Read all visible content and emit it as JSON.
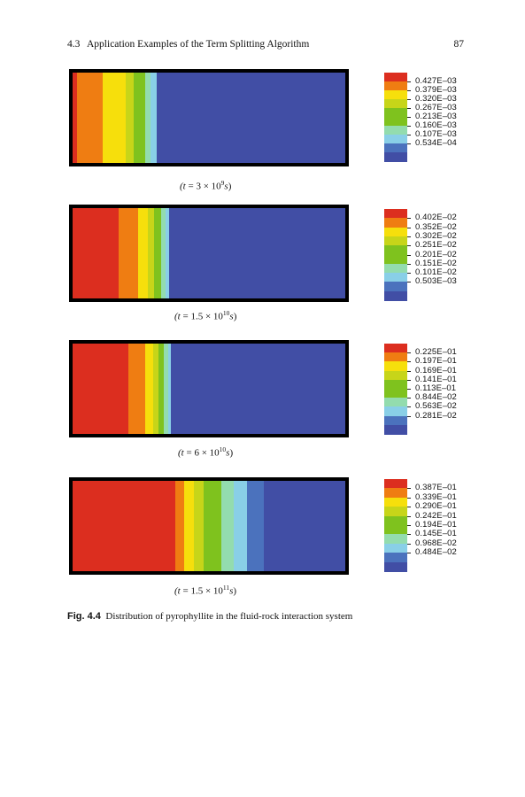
{
  "header": {
    "section_number": "4.3",
    "section_title": "Application Examples of the Term Splitting Algorithm",
    "page_number": "87"
  },
  "colors": {
    "red": "#dc2e1f",
    "orange": "#ef7d12",
    "yellow": "#f6df0c",
    "yellow_green": "#c7d519",
    "green": "#7fc21e",
    "mint": "#93dcae",
    "light_blue": "#89cfe7",
    "steel_blue": "#4b72bd",
    "blue": "#414ea5"
  },
  "legend_colors": [
    "#dc2e1f",
    "#ef7d12",
    "#f6df0c",
    "#c7d519",
    "#7fc21e",
    "#7fc21e",
    "#93dcae",
    "#89cfe7",
    "#4b72bd",
    "#414ea5"
  ],
  "panels": [
    {
      "caption": {
        "open": "(",
        "var": "t",
        "mid": " = 3 × 10",
        "exp": "9",
        "unit": "s",
        "close": ")"
      },
      "bands": [
        {
          "color": "#dc2e1f",
          "from": 0.0,
          "to": 0.016
        },
        {
          "color": "#ef7d12",
          "from": 0.016,
          "to": 0.11
        },
        {
          "color": "#f6df0c",
          "from": 0.11,
          "to": 0.195
        },
        {
          "color": "#c7d519",
          "from": 0.195,
          "to": 0.225
        },
        {
          "color": "#7fc21e",
          "from": 0.225,
          "to": 0.265
        },
        {
          "color": "#93dcae",
          "from": 0.265,
          "to": 0.285
        },
        {
          "color": "#89cfe7",
          "from": 0.285,
          "to": 0.308
        },
        {
          "color": "#414ea5",
          "from": 0.308,
          "to": 1.0
        }
      ],
      "legend_labels": [
        "0.427E–03",
        "0.379E–03",
        "0.320E–03",
        "0.267E–03",
        "0.213E–03",
        "0.160E–03",
        "0.107E–03",
        "0.534E–04"
      ]
    },
    {
      "caption": {
        "open": "(",
        "var": "t",
        "mid": " = 1.5 × 10",
        "exp": "10",
        "unit": "s",
        "close": ")"
      },
      "bands": [
        {
          "color": "#dc2e1f",
          "from": 0.0,
          "to": 0.17
        },
        {
          "color": "#ef7d12",
          "from": 0.17,
          "to": 0.24
        },
        {
          "color": "#f6df0c",
          "from": 0.24,
          "to": 0.275
        },
        {
          "color": "#c7d519",
          "from": 0.275,
          "to": 0.3
        },
        {
          "color": "#7fc21e",
          "from": 0.3,
          "to": 0.325
        },
        {
          "color": "#93dcae",
          "from": 0.325,
          "to": 0.34
        },
        {
          "color": "#89cfe7",
          "from": 0.34,
          "to": 0.355
        },
        {
          "color": "#414ea5",
          "from": 0.355,
          "to": 1.0
        }
      ],
      "legend_labels": [
        "0.402E–02",
        "0.352E–02",
        "0.302E–02",
        "0.251E–02",
        "0.201E–02",
        "0.151E–02",
        "0.101E–02",
        "0.503E–03"
      ]
    },
    {
      "caption": {
        "open": "(",
        "var": "t",
        "mid": " = 6 × 10",
        "exp": "10",
        "unit": "s",
        "close": ")"
      },
      "bands": [
        {
          "color": "#dc2e1f",
          "from": 0.0,
          "to": 0.205
        },
        {
          "color": "#ef7d12",
          "from": 0.205,
          "to": 0.265
        },
        {
          "color": "#f6df0c",
          "from": 0.265,
          "to": 0.295
        },
        {
          "color": "#c7d519",
          "from": 0.295,
          "to": 0.315
        },
        {
          "color": "#7fc21e",
          "from": 0.315,
          "to": 0.335
        },
        {
          "color": "#93dcae",
          "from": 0.335,
          "to": 0.35
        },
        {
          "color": "#89cfe7",
          "from": 0.35,
          "to": 0.362
        },
        {
          "color": "#414ea5",
          "from": 0.362,
          "to": 1.0
        }
      ],
      "legend_labels": [
        "0.225E–01",
        "0.197E–01",
        "0.169E–01",
        "0.141E–01",
        "0.113E–01",
        "0.844E–02",
        "0.563E–02",
        "0.281E–02"
      ]
    },
    {
      "caption": {
        "open": "(",
        "var": "t",
        "mid": " = 1.5 × 10",
        "exp": "11",
        "unit": "s",
        "close": ")"
      },
      "bands": [
        {
          "color": "#dc2e1f",
          "from": 0.0,
          "to": 0.375
        },
        {
          "color": "#ef7d12",
          "from": 0.375,
          "to": 0.41
        },
        {
          "color": "#f6df0c",
          "from": 0.41,
          "to": 0.445
        },
        {
          "color": "#c7d519",
          "from": 0.445,
          "to": 0.48
        },
        {
          "color": "#7fc21e",
          "from": 0.48,
          "to": 0.545
        },
        {
          "color": "#93dcae",
          "from": 0.545,
          "to": 0.59
        },
        {
          "color": "#89cfe7",
          "from": 0.59,
          "to": 0.64
        },
        {
          "color": "#4b72bd",
          "from": 0.64,
          "to": 0.7
        },
        {
          "color": "#414ea5",
          "from": 0.7,
          "to": 1.0
        }
      ],
      "legend_labels": [
        "0.387E–01",
        "0.339E–01",
        "0.290E–01",
        "0.242E–01",
        "0.194E–01",
        "0.145E–01",
        "0.968E–02",
        "0.484E–02"
      ]
    }
  ],
  "figure_caption": {
    "label": "Fig. 4.4",
    "text": "Distribution of pyrophyllite in the fluid-rock interaction system"
  }
}
